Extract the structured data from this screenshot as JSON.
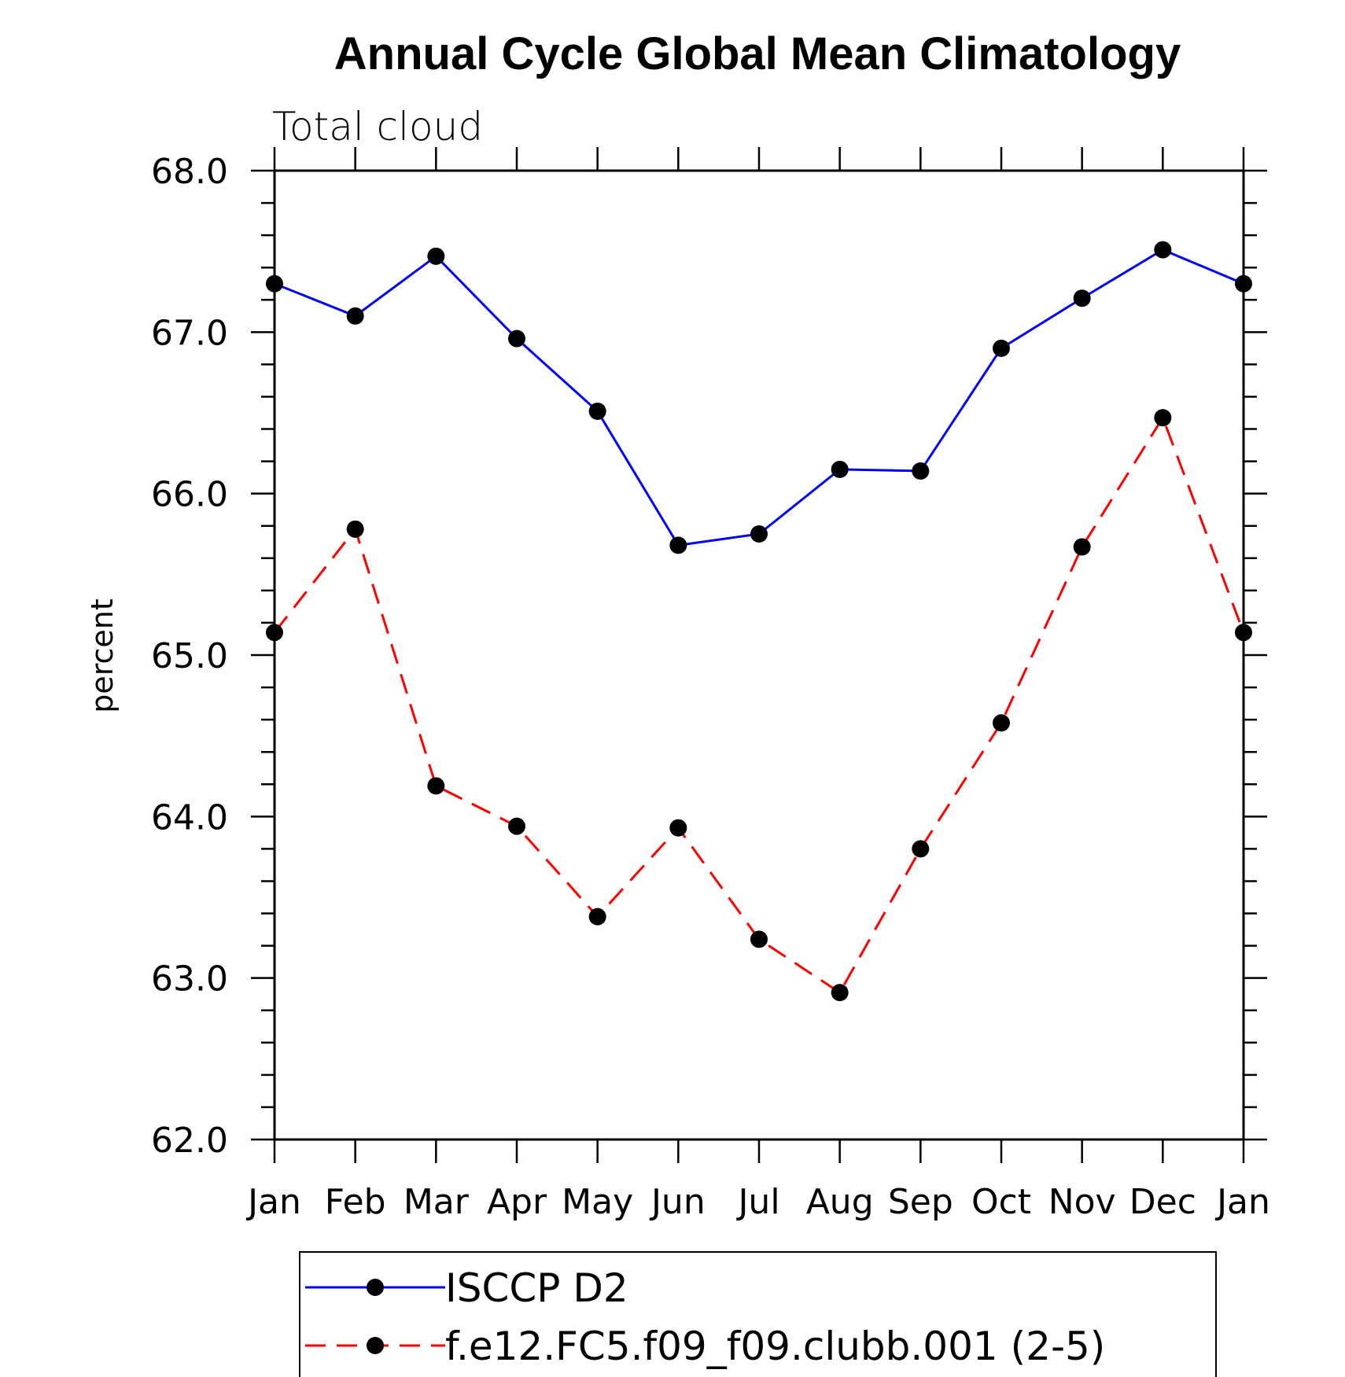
{
  "chart_data": {
    "type": "line",
    "title": "Annual Cycle Global Mean Climatology",
    "subtitle": "Total cloud",
    "xlabel": "",
    "ylabel": "percent",
    "categories": [
      "Jan",
      "Feb",
      "Mar",
      "Apr",
      "May",
      "Jun",
      "Jul",
      "Aug",
      "Sep",
      "Oct",
      "Nov",
      "Dec",
      "Jan"
    ],
    "ylim": [
      62.0,
      68.0
    ],
    "yticks": [
      "62.0",
      "63.0",
      "64.0",
      "65.0",
      "66.0",
      "67.0",
      "68.0"
    ],
    "grid": false,
    "legend_position": "bottom",
    "series": [
      {
        "name": "ISCCP D2",
        "color": "#0000ff",
        "line_style": "solid",
        "marker": "filled-circle",
        "values": [
          67.3,
          67.1,
          67.47,
          66.96,
          66.51,
          65.68,
          65.75,
          66.15,
          66.14,
          66.9,
          67.21,
          67.51,
          67.3
        ]
      },
      {
        "name": "f.e12.FC5.f09_f09.clubb.001 (2-5)",
        "color": "#ff0000",
        "line_style": "dashed",
        "marker": "filled-circle",
        "values": [
          65.14,
          65.78,
          64.19,
          63.94,
          63.38,
          63.93,
          63.24,
          62.91,
          63.8,
          64.58,
          65.67,
          66.47,
          65.14
        ]
      }
    ]
  }
}
